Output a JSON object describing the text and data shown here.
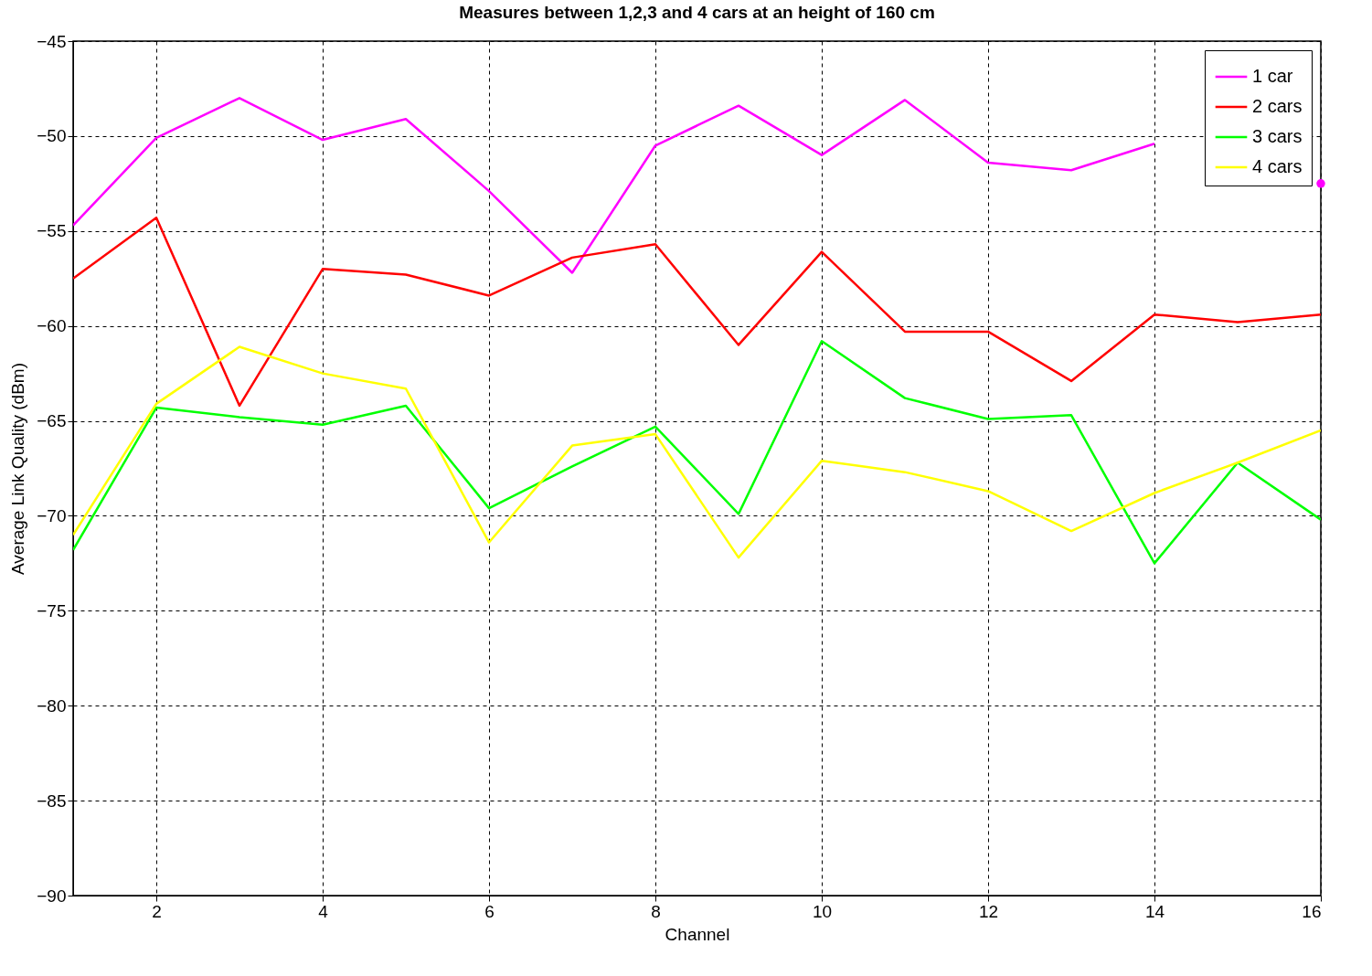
{
  "chart_data": {
    "type": "line",
    "title": "Measures between 1,2,3 and 4 cars at an height of 160 cm",
    "xlabel": "Channel",
    "ylabel": "Average Link Quality (dBm)",
    "x": [
      1,
      2,
      3,
      4,
      5,
      6,
      7,
      8,
      9,
      10,
      11,
      12,
      13,
      14,
      15,
      16
    ],
    "series": [
      {
        "name": "1 car",
        "color": "#ff00ff",
        "values": [
          -54.7,
          -50.1,
          -48.0,
          -50.2,
          -49.1,
          -52.9,
          -57.2,
          -50.5,
          -48.4,
          -51.0,
          -48.1,
          -51.4,
          -51.8,
          -50.4,
          null,
          -52.5
        ]
      },
      {
        "name": "2 cars",
        "color": "#ff0000",
        "values": [
          -57.5,
          -54.3,
          -64.2,
          -57.0,
          -57.3,
          -58.4,
          -56.4,
          -55.7,
          -61.0,
          -56.1,
          -60.3,
          -60.3,
          -62.9,
          -59.4,
          -59.8,
          -59.4
        ]
      },
      {
        "name": "3 cars",
        "color": "#00ff00",
        "values": [
          -71.8,
          -64.3,
          -64.8,
          -65.2,
          -64.2,
          -69.6,
          -67.4,
          -65.3,
          -69.9,
          -60.8,
          -63.8,
          -64.9,
          -64.7,
          -72.5,
          -67.2,
          -70.2
        ]
      },
      {
        "name": "4 cars",
        "color": "#ffff00",
        "values": [
          -71.0,
          -64.1,
          -61.1,
          -62.5,
          -63.3,
          -71.4,
          -66.3,
          -65.7,
          -72.2,
          -67.1,
          -67.7,
          -68.7,
          -70.8,
          -68.8,
          -67.2,
          -65.5
        ]
      }
    ],
    "xlim": [
      1,
      16
    ],
    "xticks": [
      2,
      4,
      6,
      8,
      10,
      12,
      14,
      16
    ],
    "ylim": [
      -90,
      -45
    ],
    "yticks": [
      -90,
      -85,
      -80,
      -75,
      -70,
      -65,
      -60,
      -55,
      -50,
      -45
    ],
    "grid": true,
    "legend": "top right",
    "line_style": "solid",
    "marker": "none"
  }
}
